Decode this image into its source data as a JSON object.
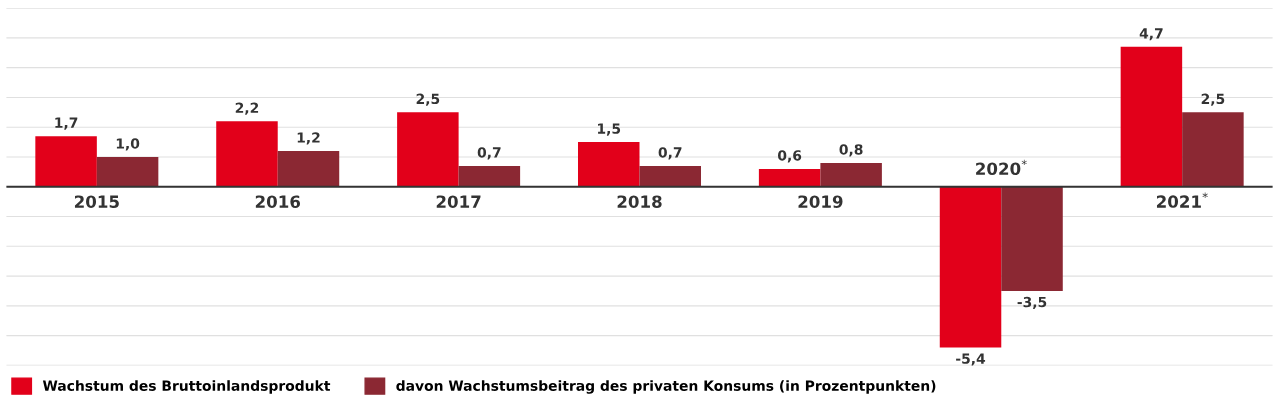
{
  "chart_data": {
    "type": "bar",
    "categories": [
      "2015",
      "2016",
      "2017",
      "2018",
      "2019",
      "2020$^{*}$",
      "2021$^{*}$"
    ],
    "series": [
      {
        "name": "Wachstum des Bruttoinlandsprodukt",
        "color": "#e2001a",
        "values": [
          1.7,
          2.2,
          2.5,
          1.5,
          0.6,
          -5.4,
          4.7
        ],
        "value_labels": [
          "1,7",
          "2,2",
          "2,5",
          "1,5",
          "0,6",
          "-5,4",
          "4,7"
        ]
      },
      {
        "name": "davon Wachstumsbeitrag des privaten Konsums (in Prozentpunkten)",
        "color": "#8b2833",
        "values": [
          1.0,
          1.2,
          0.7,
          0.7,
          0.8,
          -3.5,
          2.5
        ],
        "value_labels": [
          "1,0",
          "1,2",
          "0,7",
          "0,7",
          "0,8",
          "-3,5",
          "2,5"
        ]
      }
    ],
    "ylim": [
      -6,
      6
    ],
    "yticks": [
      {
        "value": -6,
        "label": null
      },
      {
        "value": -5,
        "label": null
      },
      {
        "value": -4,
        "label": null
      },
      {
        "value": -3,
        "label": null
      },
      {
        "value": -2,
        "label": null
      },
      {
        "value": -1,
        "label": null
      },
      {
        "value": 0,
        "label": null
      },
      {
        "value": 1,
        "label": null
      },
      {
        "value": 2,
        "label": null
      },
      {
        "value": 3,
        "label": null
      },
      {
        "value": 4,
        "label": null
      },
      {
        "value": 5,
        "label": null
      },
      {
        "value": 6,
        "label": null
      }
    ],
    "grid": "y",
    "legend": "bottom left"
  }
}
